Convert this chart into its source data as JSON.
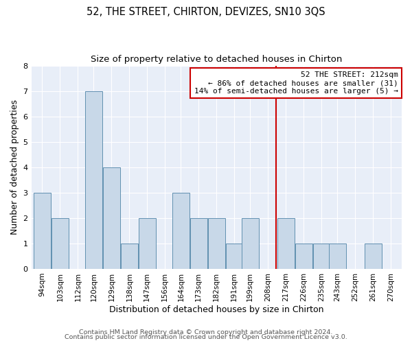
{
  "title": "52, THE STREET, CHIRTON, DEVIZES, SN10 3QS",
  "subtitle": "Size of property relative to detached houses in Chirton",
  "xlabel": "Distribution of detached houses by size in Chirton",
  "ylabel": "Number of detached properties",
  "bar_centers": [
    94,
    103,
    112,
    120,
    129,
    138,
    147,
    156,
    164,
    173,
    182,
    191,
    199,
    208,
    217,
    226,
    235,
    243,
    252,
    261,
    270
  ],
  "bar_labels": [
    "94sqm",
    "103sqm",
    "112sqm",
    "120sqm",
    "129sqm",
    "138sqm",
    "147sqm",
    "156sqm",
    "164sqm",
    "173sqm",
    "182sqm",
    "191sqm",
    "199sqm",
    "208sqm",
    "217sqm",
    "226sqm",
    "235sqm",
    "243sqm",
    "252sqm",
    "261sqm",
    "270sqm"
  ],
  "heights": [
    3,
    2,
    0,
    7,
    4,
    1,
    2,
    0,
    3,
    2,
    2,
    1,
    2,
    0,
    2,
    1,
    1,
    1,
    0,
    1
  ],
  "bar_color": "#c8d8e8",
  "bar_edge_color": "#6090b0",
  "background_color": "#e8eef8",
  "grid_color": "#ffffff",
  "redline_x": 212,
  "annotation_line1": "52 THE STREET: 212sqm",
  "annotation_line2": "← 86% of detached houses are smaller (31)",
  "annotation_line3": "14% of semi-detached houses are larger (5) →",
  "annotation_box_color": "#ffffff",
  "annotation_box_edge": "#cc0000",
  "redline_color": "#cc0000",
  "footer1": "Contains HM Land Registry data © Crown copyright and database right 2024.",
  "footer2": "Contains public sector information licensed under the Open Government Licence v3.0.",
  "ylim": [
    0,
    8
  ],
  "yticks": [
    0,
    1,
    2,
    3,
    4,
    5,
    6,
    7,
    8
  ]
}
